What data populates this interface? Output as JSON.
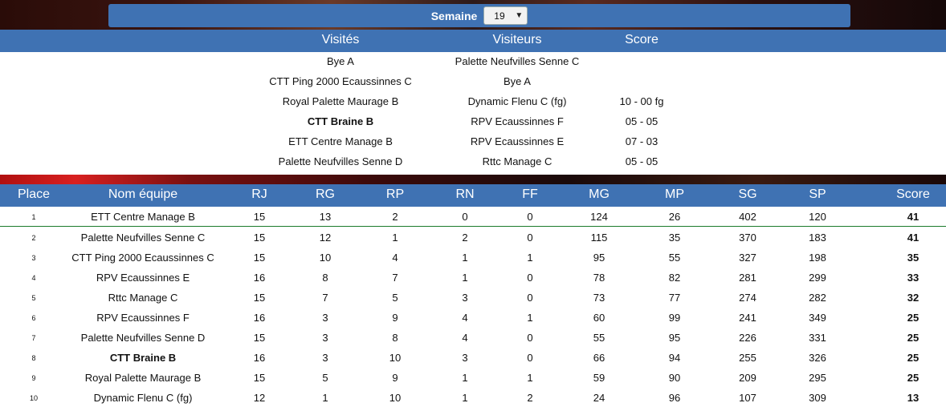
{
  "semaine": {
    "label": "Semaine",
    "selected": "19"
  },
  "matches": {
    "headers": {
      "home": "Visités",
      "away": "Visiteurs",
      "score": "Score"
    },
    "rows": [
      {
        "home": "Bye A",
        "away": "Palette Neufvilles Senne C",
        "score": "",
        "bold": false
      },
      {
        "home": "CTT Ping 2000 Ecaussinnes C",
        "away": "Bye A",
        "score": "",
        "bold": false
      },
      {
        "home": "Royal Palette Maurage B",
        "away": "Dynamic Flenu C (fg)",
        "score": "10 - 00 fg",
        "bold": false
      },
      {
        "home": "CTT Braine B",
        "away": "RPV Ecaussinnes F",
        "score": "05 - 05",
        "bold": true
      },
      {
        "home": "ETT Centre Manage B",
        "away": "RPV Ecaussinnes E",
        "score": "07 - 03",
        "bold": false
      },
      {
        "home": "Palette Neufvilles Senne D",
        "away": "Rttc Manage C",
        "score": "05 - 05",
        "bold": false
      }
    ]
  },
  "ranking": {
    "headers": [
      "Place",
      "Nom équipe",
      "RJ",
      "RG",
      "RP",
      "RN",
      "FF",
      "MG",
      "MP",
      "SG",
      "SP",
      "Score"
    ],
    "rows": [
      [
        "1",
        "ETT Centre Manage B",
        "15",
        "13",
        "2",
        "0",
        "0",
        "124",
        "26",
        "402",
        "120",
        "41"
      ],
      [
        "2",
        "Palette Neufvilles Senne C",
        "15",
        "12",
        "1",
        "2",
        "0",
        "115",
        "35",
        "370",
        "183",
        "41"
      ],
      [
        "3",
        "CTT Ping 2000 Ecaussinnes C",
        "15",
        "10",
        "4",
        "1",
        "1",
        "95",
        "55",
        "327",
        "198",
        "35"
      ],
      [
        "4",
        "RPV Ecaussinnes E",
        "16",
        "8",
        "7",
        "1",
        "0",
        "78",
        "82",
        "281",
        "299",
        "33"
      ],
      [
        "5",
        "Rttc Manage C",
        "15",
        "7",
        "5",
        "3",
        "0",
        "73",
        "77",
        "274",
        "282",
        "32"
      ],
      [
        "6",
        "RPV Ecaussinnes F",
        "16",
        "3",
        "9",
        "4",
        "1",
        "60",
        "99",
        "241",
        "349",
        "25"
      ],
      [
        "7",
        "Palette Neufvilles Senne D",
        "15",
        "3",
        "8",
        "4",
        "0",
        "55",
        "95",
        "226",
        "331",
        "25"
      ],
      [
        "8",
        "CTT Braine B",
        "16",
        "3",
        "10",
        "3",
        "0",
        "66",
        "94",
        "255",
        "326",
        "25"
      ],
      [
        "9",
        "Royal Palette Maurage B",
        "15",
        "5",
        "9",
        "1",
        "1",
        "59",
        "90",
        "209",
        "295",
        "25"
      ],
      [
        "10",
        "Dynamic Flenu C (fg)",
        "12",
        "1",
        "10",
        "1",
        "2",
        "24",
        "96",
        "107",
        "309",
        "13"
      ]
    ],
    "bold_team": "CTT Braine B"
  }
}
